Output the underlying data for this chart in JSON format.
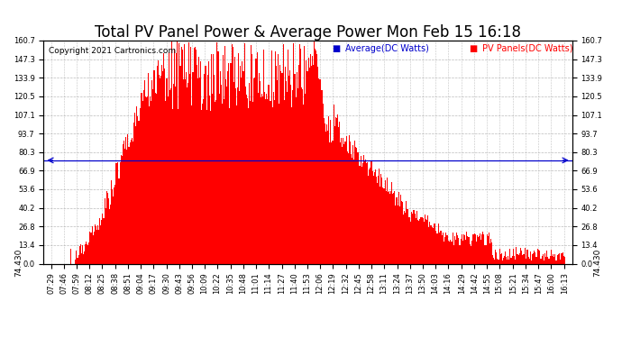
{
  "title": "Total PV Panel Power & Average Power Mon Feb 15 16:18",
  "copyright": "Copyright 2021 Cartronics.com",
  "legend_avg": "Average(DC Watts)",
  "legend_pv": "PV Panels(DC Watts)",
  "avg_value": 74.43,
  "avg_label": "74.430",
  "ymax": 160.7,
  "ymin": 0.0,
  "yticks": [
    0.0,
    13.4,
    26.8,
    40.2,
    53.6,
    66.9,
    80.3,
    93.7,
    107.1,
    120.5,
    133.9,
    147.3,
    160.7
  ],
  "bar_color": "#ff0000",
  "avg_line_color": "#0000cc",
  "grid_color": "#aaaaaa",
  "bg_color": "#ffffff",
  "title_fontsize": 12,
  "tick_label_fontsize": 6.0,
  "time_labels": [
    "07:29",
    "07:46",
    "07:59",
    "08:12",
    "08:25",
    "08:38",
    "08:51",
    "09:04",
    "09:17",
    "09:30",
    "09:43",
    "09:56",
    "10:09",
    "10:22",
    "10:35",
    "10:48",
    "11:01",
    "11:14",
    "11:27",
    "11:40",
    "11:53",
    "12:06",
    "12:19",
    "12:32",
    "12:45",
    "12:58",
    "13:11",
    "13:24",
    "13:37",
    "13:50",
    "14:03",
    "14:16",
    "14:29",
    "14:42",
    "14:55",
    "15:08",
    "15:21",
    "15:34",
    "15:47",
    "16:00",
    "16:13"
  ]
}
